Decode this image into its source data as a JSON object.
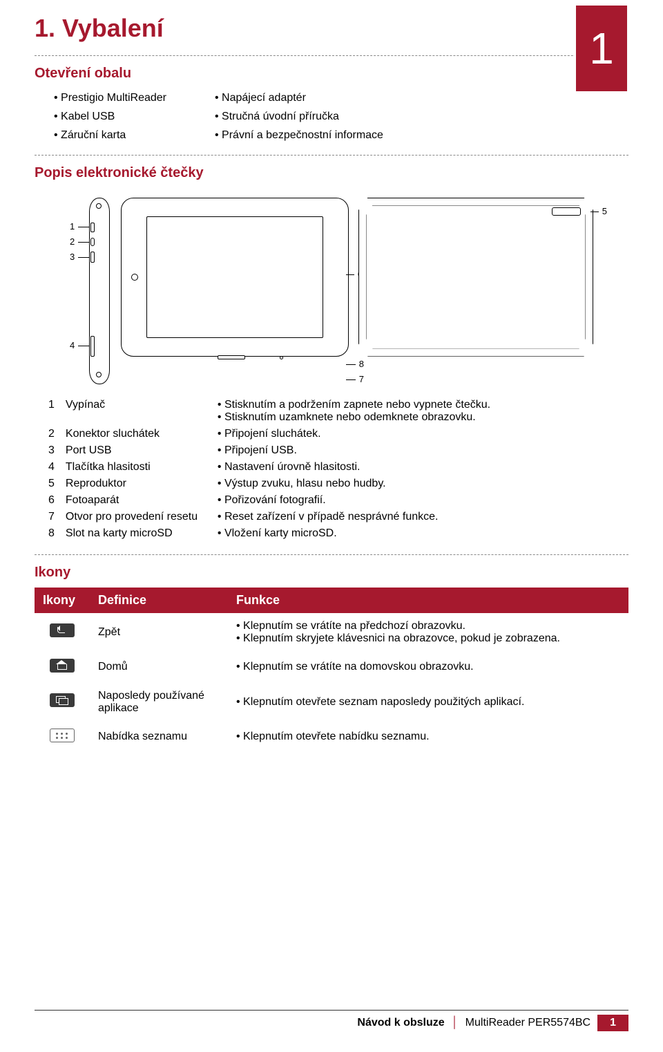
{
  "colors": {
    "accent": "#a6192e",
    "icon_bg": "#3a3a3a",
    "text": "#111111"
  },
  "page_badge": "1",
  "title": "1. Vybalení",
  "section_opening": "Otevření obalu",
  "opening_left": [
    "Prestigio MultiReader",
    "Kabel USB",
    "Záruční karta"
  ],
  "opening_right": [
    "Napájecí adaptér",
    "Stručná úvodní příručka",
    "Právní a bezpečnostní informace"
  ],
  "section_desc": "Popis elektronické čtečky",
  "diagram_labels": {
    "l1": "1",
    "l2": "2",
    "l3": "3",
    "l4": "4",
    "l5": "5",
    "l6": "6",
    "l7": "7",
    "l8": "8"
  },
  "parts": [
    {
      "n": "1",
      "name": "Vypínač",
      "desc": [
        "Stisknutím a podržením zapnete nebo vypnete čtečku.",
        "Stisknutím uzamknete nebo odemknete obrazovku."
      ]
    },
    {
      "n": "2",
      "name": "Konektor sluchátek",
      "desc": [
        "Připojení sluchátek."
      ]
    },
    {
      "n": "3",
      "name": "Port USB",
      "desc": [
        "Připojení USB."
      ]
    },
    {
      "n": "4",
      "name": "Tlačítka hlasitosti",
      "desc": [
        "Nastavení úrovně hlasitosti."
      ]
    },
    {
      "n": "5",
      "name": "Reproduktor",
      "desc": [
        "Výstup zvuku, hlasu nebo hudby."
      ]
    },
    {
      "n": "6",
      "name": "Fotoaparát",
      "desc": [
        "Pořizování fotografií."
      ]
    },
    {
      "n": "7",
      "name": "Otvor pro provedení resetu",
      "desc": [
        "Reset zařízení v případě nesprávné funkce."
      ]
    },
    {
      "n": "8",
      "name": "Slot na karty microSD",
      "desc": [
        "Vložení karty microSD."
      ]
    }
  ],
  "section_icons": "Ikony",
  "icons_header": {
    "c1": "Ikony",
    "c2": "Definice",
    "c3": "Funkce"
  },
  "icons": [
    {
      "def": "Zpět",
      "fn": [
        "Klepnutím se vrátíte na předchozí obrazovku.",
        "Klepnutím skryjete klávesnici na obrazovce, pokud je zobrazena."
      ]
    },
    {
      "def": "Domů",
      "fn": [
        "Klepnutím se vrátíte na domovskou obrazovku."
      ]
    },
    {
      "def": "Naposledy používané aplikace",
      "fn": [
        "Klepnutím otevřete seznam naposledy použitých aplikací."
      ]
    },
    {
      "def": "Nabídka seznamu",
      "fn": [
        "Klepnutím otevřete nabídku seznamu."
      ]
    }
  ],
  "footer": {
    "left": "Návod k obsluze",
    "right": "MultiReader PER5574BC",
    "page": "1"
  }
}
